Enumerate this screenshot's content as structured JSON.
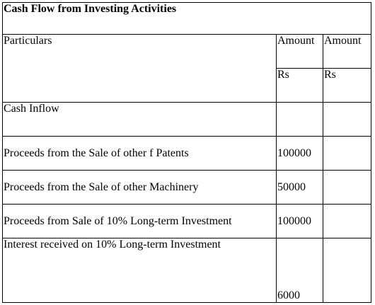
{
  "table": {
    "title": "Cash Flow from Investing Activities",
    "header": {
      "particulars": "Particulars",
      "amount_label": "Amount",
      "currency_label": "Rs"
    },
    "rows": [
      {
        "particulars": "Cash Inflow",
        "amount1": "",
        "amount2": ""
      },
      {
        "particulars": "Proceeds from the Sale of other f Patents",
        "amount1": "100000",
        "amount2": ""
      },
      {
        "particulars": "Proceeds from the Sale of other Machinery",
        "amount1": "50000",
        "amount2": ""
      },
      {
        "particulars": "Proceeds from Sale of 10% Long-term Investment",
        "amount1": "100000",
        "amount2": ""
      },
      {
        "particulars": "Interest received on 10% Long-term Investment",
        "amount1": "6000",
        "amount2": ""
      }
    ]
  }
}
